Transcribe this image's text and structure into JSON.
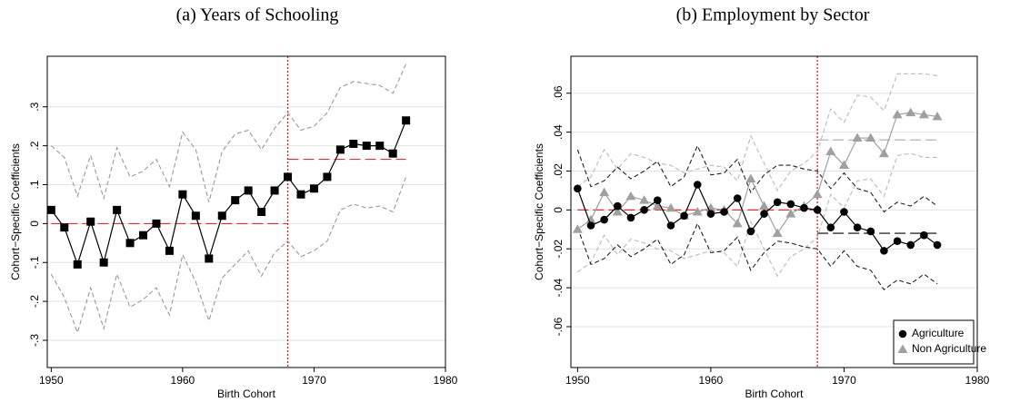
{
  "chart_data": [
    {
      "type": "line",
      "title": "(a) Years of Schooling",
      "x_label": "Birth Cohort",
      "y_label": "Cohort−Specific Coefficients",
      "x": [
        1950,
        1951,
        1952,
        1953,
        1954,
        1955,
        1956,
        1957,
        1958,
        1959,
        1960,
        1961,
        1962,
        1963,
        1964,
        1965,
        1966,
        1967,
        1968,
        1969,
        1970,
        1971,
        1972,
        1973,
        1974,
        1975,
        1976,
        1977
      ],
      "xlim": [
        1949.7,
        1980
      ],
      "xticks": [
        1950,
        1960,
        1970,
        1980
      ],
      "ylim": [
        -0.37,
        0.43
      ],
      "yticks": [
        {
          "value": -0.3,
          "label": "-.3"
        },
        {
          "value": -0.2,
          "label": "-.2"
        },
        {
          "value": -0.1,
          "label": "-.1"
        },
        0,
        {
          "value": 0.1,
          "label": ".1"
        },
        {
          "value": 0.2,
          "label": ".2"
        },
        {
          "value": 0.3,
          "label": ".3"
        }
      ],
      "grid": true,
      "vline": 1968,
      "vline_color": "#d7191c",
      "series": [
        {
          "color": "#999999",
          "dash": "dashed",
          "values": [
            0.2,
            0.17,
            0.07,
            0.175,
            0.065,
            0.195,
            0.12,
            0.135,
            0.165,
            0.095,
            0.235,
            0.19,
            0.055,
            0.185,
            0.23,
            0.24,
            0.19,
            0.245,
            0.285,
            0.24,
            0.25,
            0.285,
            0.35,
            0.365,
            0.36,
            0.355,
            0.335,
            0.41
          ]
        },
        {
          "color": "#999999",
          "dash": "dashed",
          "values": [
            -0.13,
            -0.19,
            -0.28,
            -0.165,
            -0.27,
            -0.13,
            -0.215,
            -0.195,
            -0.165,
            -0.235,
            -0.08,
            -0.15,
            -0.25,
            -0.14,
            -0.105,
            -0.07,
            -0.135,
            -0.075,
            -0.045,
            -0.085,
            -0.07,
            -0.045,
            0.035,
            0.05,
            0.04,
            0.045,
            0.03,
            0.12
          ]
        },
        {
          "color": "#d7191c",
          "dash": "longdash",
          "x": [
            1950,
            1968
          ],
          "values": [
            0,
            0
          ]
        },
        {
          "color": "#d7191c",
          "dash": "longdash",
          "x": [
            1968,
            1977
          ],
          "values": [
            0.165,
            0.165
          ]
        },
        {
          "color": "#000000",
          "dash": "solid",
          "marker": "square",
          "values": [
            0.035,
            -0.01,
            -0.105,
            0.005,
            -0.1,
            0.035,
            -0.05,
            -0.03,
            0,
            -0.07,
            0.075,
            0.02,
            -0.09,
            0.02,
            0.06,
            0.085,
            0.03,
            0.085,
            0.12,
            0.075,
            0.09,
            0.12,
            0.19,
            0.205,
            0.2,
            0.2,
            0.18,
            0.265
          ]
        }
      ]
    },
    {
      "type": "line",
      "title": "(b) Employment by Sector",
      "x_label": "Birth Cohort",
      "y_label": "Cohort−Specific Coefficients",
      "x": [
        1950,
        1951,
        1952,
        1953,
        1954,
        1955,
        1956,
        1957,
        1958,
        1959,
        1960,
        1961,
        1962,
        1963,
        1964,
        1965,
        1966,
        1967,
        1968,
        1969,
        1970,
        1971,
        1972,
        1973,
        1974,
        1975,
        1976,
        1977
      ],
      "xlim": [
        1949.5,
        1980
      ],
      "xticks": [
        1950,
        1960,
        1970,
        1980
      ],
      "ylim": [
        -0.081,
        0.079
      ],
      "yticks": [
        {
          "value": -0.06,
          "label": "-.06"
        },
        {
          "value": -0.04,
          "label": "-.04"
        },
        {
          "value": -0.02,
          "label": "-.02"
        },
        0,
        {
          "value": 0.02,
          "label": ".02"
        },
        {
          "value": 0.04,
          "label": ".04"
        },
        {
          "value": 0.06,
          "label": ".06"
        }
      ],
      "grid": true,
      "vline": 1968,
      "vline_color": "#d7191c",
      "legend": "lower right",
      "series": [
        {
          "color": "#bbbbbb",
          "dash": "dashed",
          "values": [
            0.012,
            0.017,
            0.031,
            0.021,
            0.029,
            0.027,
            0.024,
            0.023,
            0.019,
            0.021,
            0.023,
            0.022,
            0.015,
            0.038,
            0.024,
            0.01,
            0.02,
            0.024,
            0.03,
            0.052,
            0.045,
            0.059,
            0.058,
            0.051,
            0.07,
            0.07,
            0.07,
            0.069
          ]
        },
        {
          "color": "#bbbbbb",
          "dash": "dashed",
          "values": [
            -0.032,
            -0.027,
            -0.013,
            -0.023,
            -0.015,
            -0.017,
            -0.02,
            -0.021,
            -0.025,
            -0.023,
            -0.021,
            -0.022,
            -0.029,
            -0.006,
            -0.02,
            -0.034,
            -0.024,
            -0.02,
            -0.014,
            0.008,
            0.001,
            0.015,
            0.016,
            0.007,
            0.028,
            0.029,
            0.027,
            0.027
          ]
        },
        {
          "color": "#222222",
          "dash": "dashed",
          "values": [
            0.031,
            0.012,
            0.015,
            0.022,
            0.016,
            0.02,
            0.025,
            0.012,
            0.017,
            0.033,
            0.018,
            0.019,
            0.026,
            0.009,
            0.018,
            0.023,
            0.023,
            0.021,
            0.02,
            0.011,
            0.019,
            0.011,
            0.009,
            -0.001,
            0.004,
            0.002,
            0.007,
            0.002
          ]
        },
        {
          "color": "#222222",
          "dash": "dashed",
          "values": [
            -0.009,
            -0.028,
            -0.025,
            -0.018,
            -0.024,
            -0.02,
            -0.015,
            -0.028,
            -0.023,
            -0.007,
            -0.022,
            -0.021,
            -0.014,
            -0.031,
            -0.022,
            -0.016,
            -0.017,
            -0.019,
            -0.02,
            -0.029,
            -0.021,
            -0.029,
            -0.031,
            -0.041,
            -0.036,
            -0.038,
            -0.033,
            -0.038
          ]
        },
        {
          "color": "#d7191c",
          "dash": "longdash",
          "x": [
            1950,
            1968
          ],
          "values": [
            0,
            0
          ]
        },
        {
          "color": "#000000",
          "dash": "longdash",
          "x": [
            1968,
            1977
          ],
          "values": [
            -0.012,
            -0.012
          ]
        },
        {
          "color": "#aaaaaa",
          "dash": "longdash",
          "x": [
            1968,
            1977
          ],
          "values": [
            0.036,
            0.036
          ]
        },
        {
          "name": "Non Agriculture",
          "color": "#a0a0a0",
          "dash": "solid",
          "marker": "triangle",
          "values": [
            -0.01,
            -0.005,
            0.009,
            -0.001,
            0.007,
            0.005,
            0.002,
            0.001,
            -0.003,
            -0.001,
            0.001,
            0,
            -0.007,
            0.016,
            0.002,
            -0.012,
            -0.002,
            0.002,
            0.008,
            0.03,
            0.023,
            0.037,
            0.037,
            0.029,
            0.049,
            0.05,
            0.049,
            0.048
          ]
        },
        {
          "name": "Agriculture",
          "color": "#000000",
          "dash": "solid",
          "marker": "circle",
          "values": [
            0.011,
            -0.008,
            -0.005,
            0.002,
            -0.004,
            0,
            0.005,
            -0.008,
            -0.003,
            0.013,
            -0.002,
            -0.001,
            0.006,
            -0.011,
            -0.002,
            0.004,
            0.003,
            0.001,
            0,
            -0.009,
            -0.001,
            -0.009,
            -0.011,
            -0.021,
            -0.016,
            -0.018,
            -0.013,
            -0.018
          ]
        }
      ]
    }
  ]
}
